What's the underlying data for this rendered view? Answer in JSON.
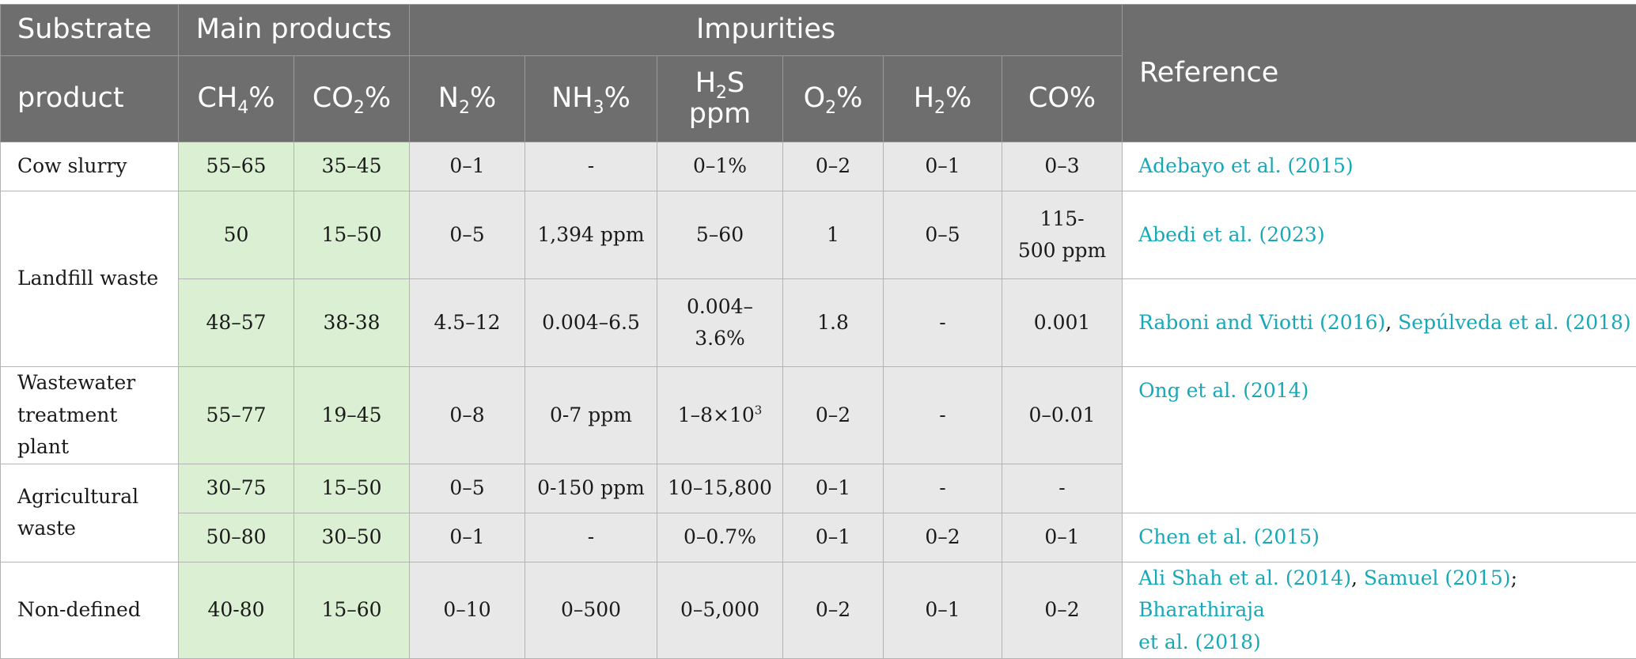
{
  "header": {
    "substrate": "Substrate",
    "product": "product",
    "main_products": "Main products",
    "impurities": "Impurities",
    "reference": "Reference",
    "ch4": {
      "base": "CH",
      "sub": "4",
      "tail": "%"
    },
    "co2": {
      "base": "CO",
      "sub": "2",
      "tail": "%"
    },
    "n2": {
      "base": "N",
      "sub": "2",
      "tail": "%"
    },
    "nh3": {
      "base": "NH",
      "sub": "3",
      "tail": "%"
    },
    "h2s": {
      "base": "H",
      "sub": "2",
      "tail": "S",
      "unit": "ppm"
    },
    "o2": {
      "base": "O",
      "sub": "2",
      "tail": "%"
    },
    "h2": {
      "base": "H",
      "sub": "2",
      "tail": "%"
    },
    "co": "CO%"
  },
  "rows": {
    "cow": {
      "substrate": "Cow slurry",
      "ch4": "55–65",
      "co2": "35–45",
      "n2": "0–1",
      "nh3": "-",
      "h2s": "0–1%",
      "o2": "0–2",
      "h2": "0–1",
      "co": "0–3",
      "ref": "Adebayo et al. (2015)"
    },
    "landfill": {
      "substrate": "Landfill waste",
      "a": {
        "ch4": "50",
        "co2": "15–50",
        "n2": "0–5",
        "nh3": "1,394 ppm",
        "h2s": "5–60",
        "o2": "1",
        "h2": "0–5",
        "co_line1": "115-",
        "co_line2": "500 ppm",
        "ref": "Abedi et al. (2023)"
      },
      "b": {
        "ch4": "48–57",
        "co2": "38-38",
        "n2": "4.5–12",
        "nh3": "0.004–6.5",
        "h2s_line1": "0.004–",
        "h2s_line2": "3.6%",
        "o2": "1.8",
        "h2": "-",
        "co": "0.001",
        "ref1": "Raboni and Viotti (2016)",
        "ref_sep": ", ",
        "ref2": "Sepúlveda et al. (2018)"
      }
    },
    "wwtp": {
      "substrate_line1": "Wastewater",
      "substrate_line2": "treatment plant",
      "ch4": "55–77",
      "co2": "19–45",
      "n2": "0–8",
      "nh3": "0-7 ppm",
      "h2s_base": "1–8×10",
      "h2s_sup": "3",
      "o2": "0–2",
      "h2": "-",
      "co": "0–0.01",
      "ref": "Ong et al. (2014)"
    },
    "agri": {
      "substrate_line1": "Agricultural",
      "substrate_line2": "waste",
      "a": {
        "ch4": "30–75",
        "co2": "15–50",
        "n2": "0–5",
        "nh3": "0-150 ppm",
        "h2s": "10–15,800",
        "o2": "0–1",
        "h2": "-",
        "co": "-"
      },
      "b": {
        "ch4": "50–80",
        "co2": "30–50",
        "n2": "0–1",
        "nh3": "-",
        "h2s": "0–0.7%",
        "o2": "0–1",
        "h2": "0–2",
        "co": "0–1",
        "ref": "Chen et al. (2015)"
      }
    },
    "nondef": {
      "substrate": "Non-defined",
      "ch4": "40-80",
      "co2": "15–60",
      "n2": "0–10",
      "nh3": "0–500",
      "h2s": "0–5,000",
      "o2": "0–2",
      "h2": "0–1",
      "co": "0–2",
      "ref1": "Ali Shah et al. (2014)",
      "ref_sep1": ", ",
      "ref2": "Samuel (2015)",
      "ref_sep2": "; ",
      "ref3_line1": "Bharathiraja",
      "ref3_line2": "et al. (2018)"
    }
  },
  "colors": {
    "header_bg": "#6e6e6e",
    "main_products_bg": "#dbefd2",
    "impurities_bg": "#e8e8e8",
    "link": "#17a8b8"
  }
}
